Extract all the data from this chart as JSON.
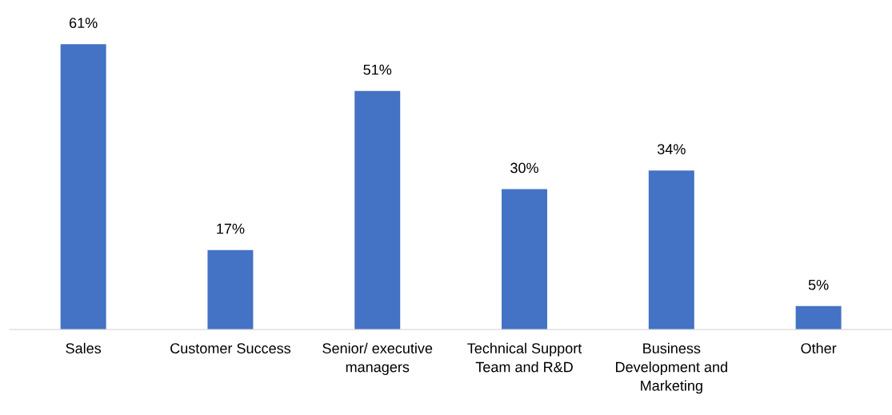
{
  "chart_data": {
    "type": "bar",
    "categories": [
      "Sales",
      "Customer Success",
      "Senior/ executive\nmanagers",
      "Technical Support\nTeam and R&D",
      "Business\nDevelopment and\nMarketing",
      "Other"
    ],
    "values": [
      61,
      17,
      51,
      30,
      34,
      5
    ],
    "value_labels": [
      "61%",
      "17%",
      "51%",
      "30%",
      "34%",
      "5%"
    ],
    "color": "#4472c4",
    "tick_labels": "x"
  }
}
